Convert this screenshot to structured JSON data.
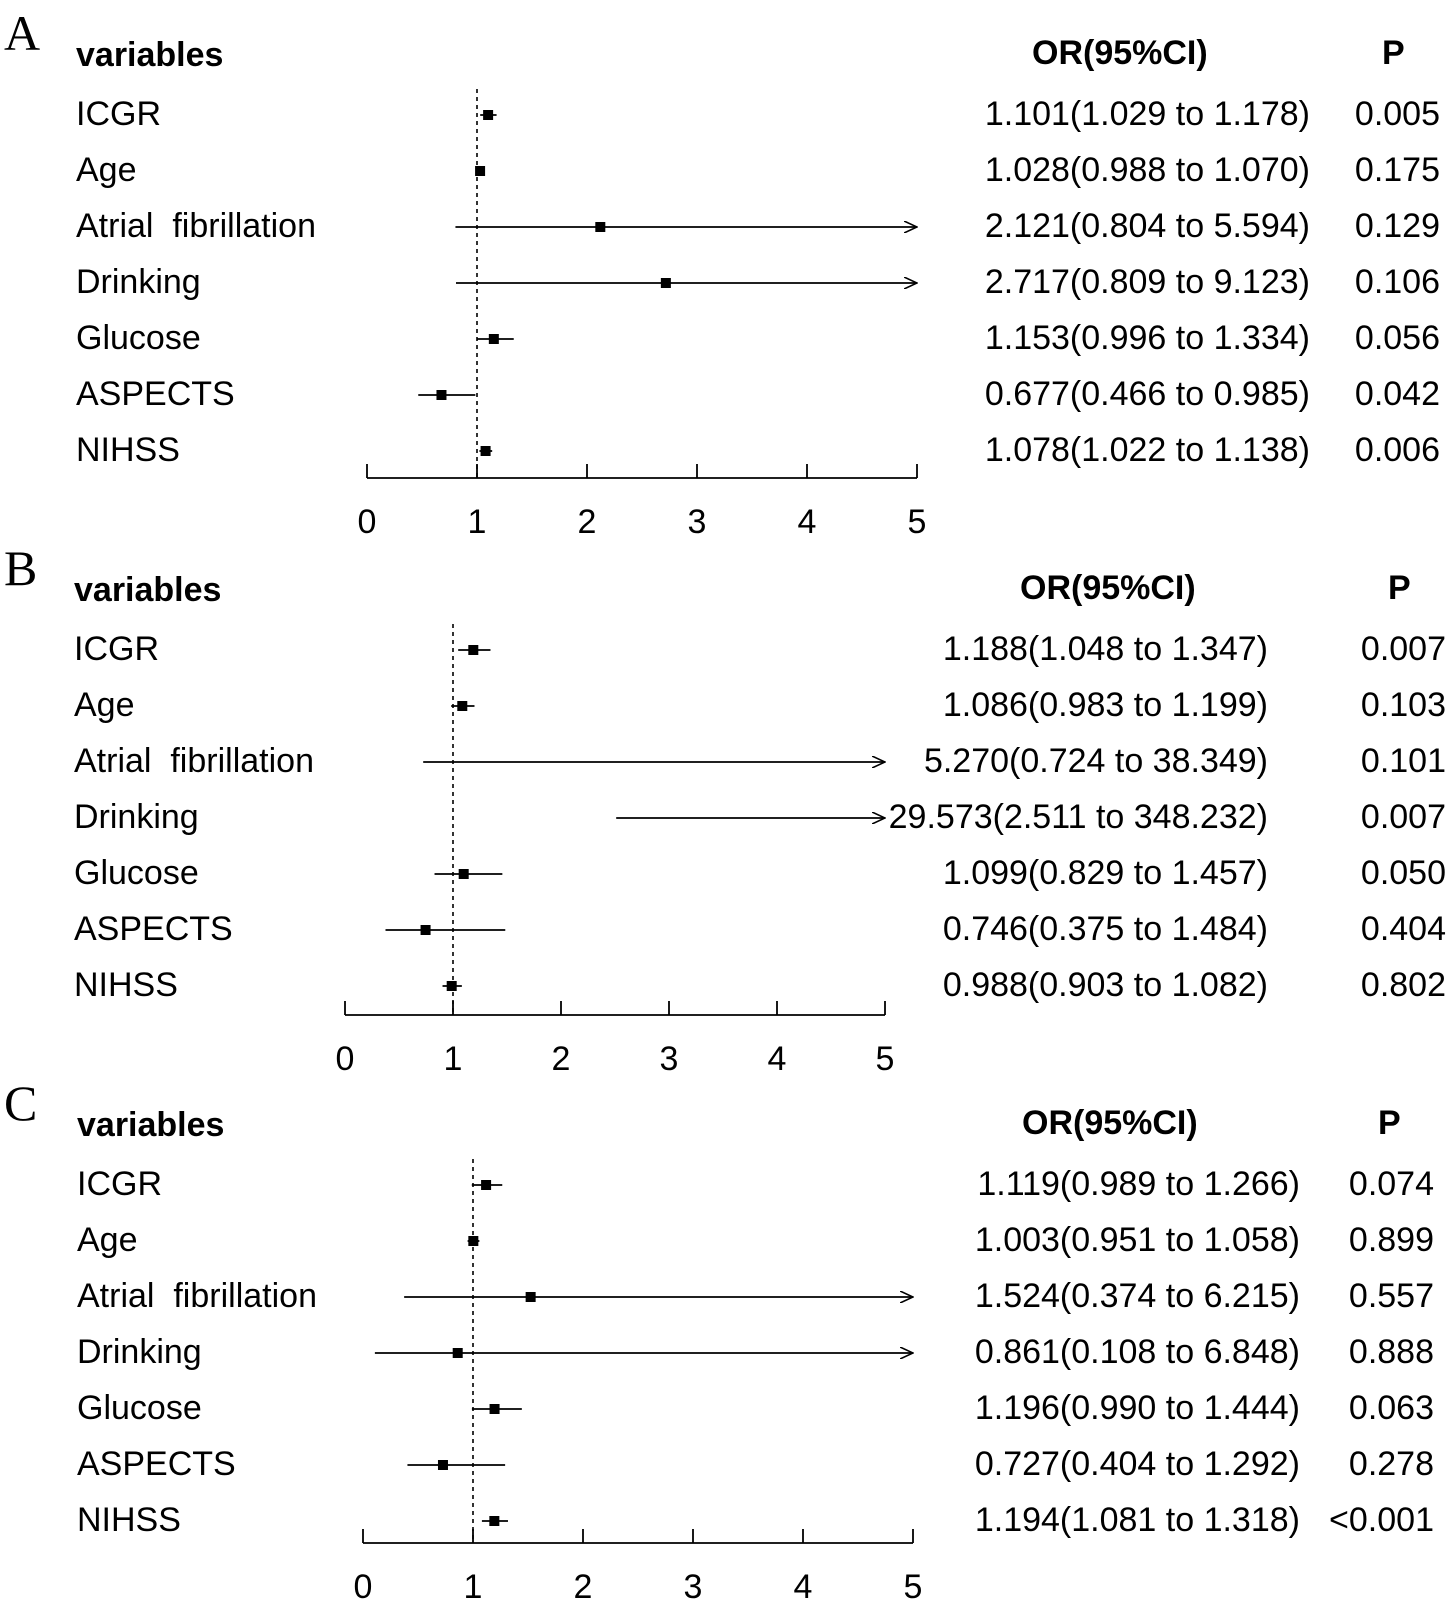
{
  "figure": {
    "header_variables": "variables",
    "header_or": "OR(95%CI)",
    "header_p": "P"
  },
  "chart_data": [
    {
      "type": "forest",
      "panel": "A",
      "xlim": [
        0,
        5
      ],
      "xticks": [
        0,
        1,
        2,
        3,
        4,
        5
      ],
      "reference_line": 1,
      "rows": [
        {
          "variable": "ICGR",
          "or": 1.101,
          "lower": 1.029,
          "upper": 1.178,
          "or_text": "1.101(1.029 to 1.178)",
          "p": "0.005"
        },
        {
          "variable": "Age",
          "or": 1.028,
          "lower": 0.988,
          "upper": 1.07,
          "or_text": "1.028(0.988 to 1.070)",
          "p": "0.175"
        },
        {
          "variable": "Atrial  fibrillation",
          "or": 2.121,
          "lower": 0.804,
          "upper": 5.594,
          "or_text": "2.121(0.804 to 5.594)",
          "p": "0.129"
        },
        {
          "variable": "Drinking",
          "or": 2.717,
          "lower": 0.809,
          "upper": 9.123,
          "or_text": "2.717(0.809 to 9.123)",
          "p": "0.106"
        },
        {
          "variable": "Glucose",
          "or": 1.153,
          "lower": 0.996,
          "upper": 1.334,
          "or_text": "1.153(0.996 to 1.334)",
          "p": "0.056"
        },
        {
          "variable": "ASPECTS",
          "or": 0.677,
          "lower": 0.466,
          "upper": 0.985,
          "or_text": "0.677(0.466 to 0.985)",
          "p": "0.042"
        },
        {
          "variable": "NIHSS",
          "or": 1.078,
          "lower": 1.022,
          "upper": 1.138,
          "or_text": "1.078(1.022 to 1.138)",
          "p": "0.006"
        }
      ]
    },
    {
      "type": "forest",
      "panel": "B",
      "xlim": [
        0,
        5
      ],
      "xticks": [
        0,
        1,
        2,
        3,
        4,
        5
      ],
      "reference_line": 1,
      "rows": [
        {
          "variable": "ICGR",
          "or": 1.188,
          "lower": 1.048,
          "upper": 1.347,
          "or_text": "1.188(1.048 to 1.347)",
          "p": "0.007"
        },
        {
          "variable": "Age",
          "or": 1.086,
          "lower": 0.983,
          "upper": 1.199,
          "or_text": "1.086(0.983 to 1.199)",
          "p": "0.103"
        },
        {
          "variable": "Atrial  fibrillation",
          "or": 5.27,
          "lower": 0.724,
          "upper": 38.349,
          "or_text": "5.270(0.724 to 38.349)",
          "p": "0.101"
        },
        {
          "variable": "Drinking",
          "or": 29.573,
          "lower": 2.511,
          "upper": 348.232,
          "or_text": "29.573(2.511 to 348.232)",
          "p": "0.007"
        },
        {
          "variable": "Glucose",
          "or": 1.099,
          "lower": 0.829,
          "upper": 1.457,
          "or_text": "1.099(0.829 to 1.457)",
          "p": "0.050"
        },
        {
          "variable": "ASPECTS",
          "or": 0.746,
          "lower": 0.375,
          "upper": 1.484,
          "or_text": "0.746(0.375 to 1.484)",
          "p": "0.404"
        },
        {
          "variable": "NIHSS",
          "or": 0.988,
          "lower": 0.903,
          "upper": 1.082,
          "or_text": "0.988(0.903 to 1.082)",
          "p": "0.802"
        }
      ]
    },
    {
      "type": "forest",
      "panel": "C",
      "xlim": [
        0,
        5
      ],
      "xticks": [
        0,
        1,
        2,
        3,
        4,
        5
      ],
      "reference_line": 1,
      "rows": [
        {
          "variable": "ICGR",
          "or": 1.119,
          "lower": 0.989,
          "upper": 1.266,
          "or_text": "1.119(0.989 to 1.266)",
          "p": "0.074"
        },
        {
          "variable": "Age",
          "or": 1.003,
          "lower": 0.951,
          "upper": 1.058,
          "or_text": "1.003(0.951 to 1.058)",
          "p": "0.899"
        },
        {
          "variable": "Atrial  fibrillation",
          "or": 1.524,
          "lower": 0.374,
          "upper": 6.215,
          "or_text": "1.524(0.374 to 6.215)",
          "p": "0.557"
        },
        {
          "variable": "Drinking",
          "or": 0.861,
          "lower": 0.108,
          "upper": 6.848,
          "or_text": "0.861(0.108 to 6.848)",
          "p": "0.888"
        },
        {
          "variable": "Glucose",
          "or": 1.196,
          "lower": 0.99,
          "upper": 1.444,
          "or_text": "1.196(0.990 to 1.444)",
          "p": "0.063"
        },
        {
          "variable": "ASPECTS",
          "or": 0.727,
          "lower": 0.404,
          "upper": 1.292,
          "or_text": "0.727(0.404 to 1.292)",
          "p": "0.278"
        },
        {
          "variable": "NIHSS",
          "or": 1.194,
          "lower": 1.081,
          "upper": 1.318,
          "or_text": "1.194(1.081 to 1.318)",
          "p": "<0.001"
        }
      ]
    }
  ]
}
